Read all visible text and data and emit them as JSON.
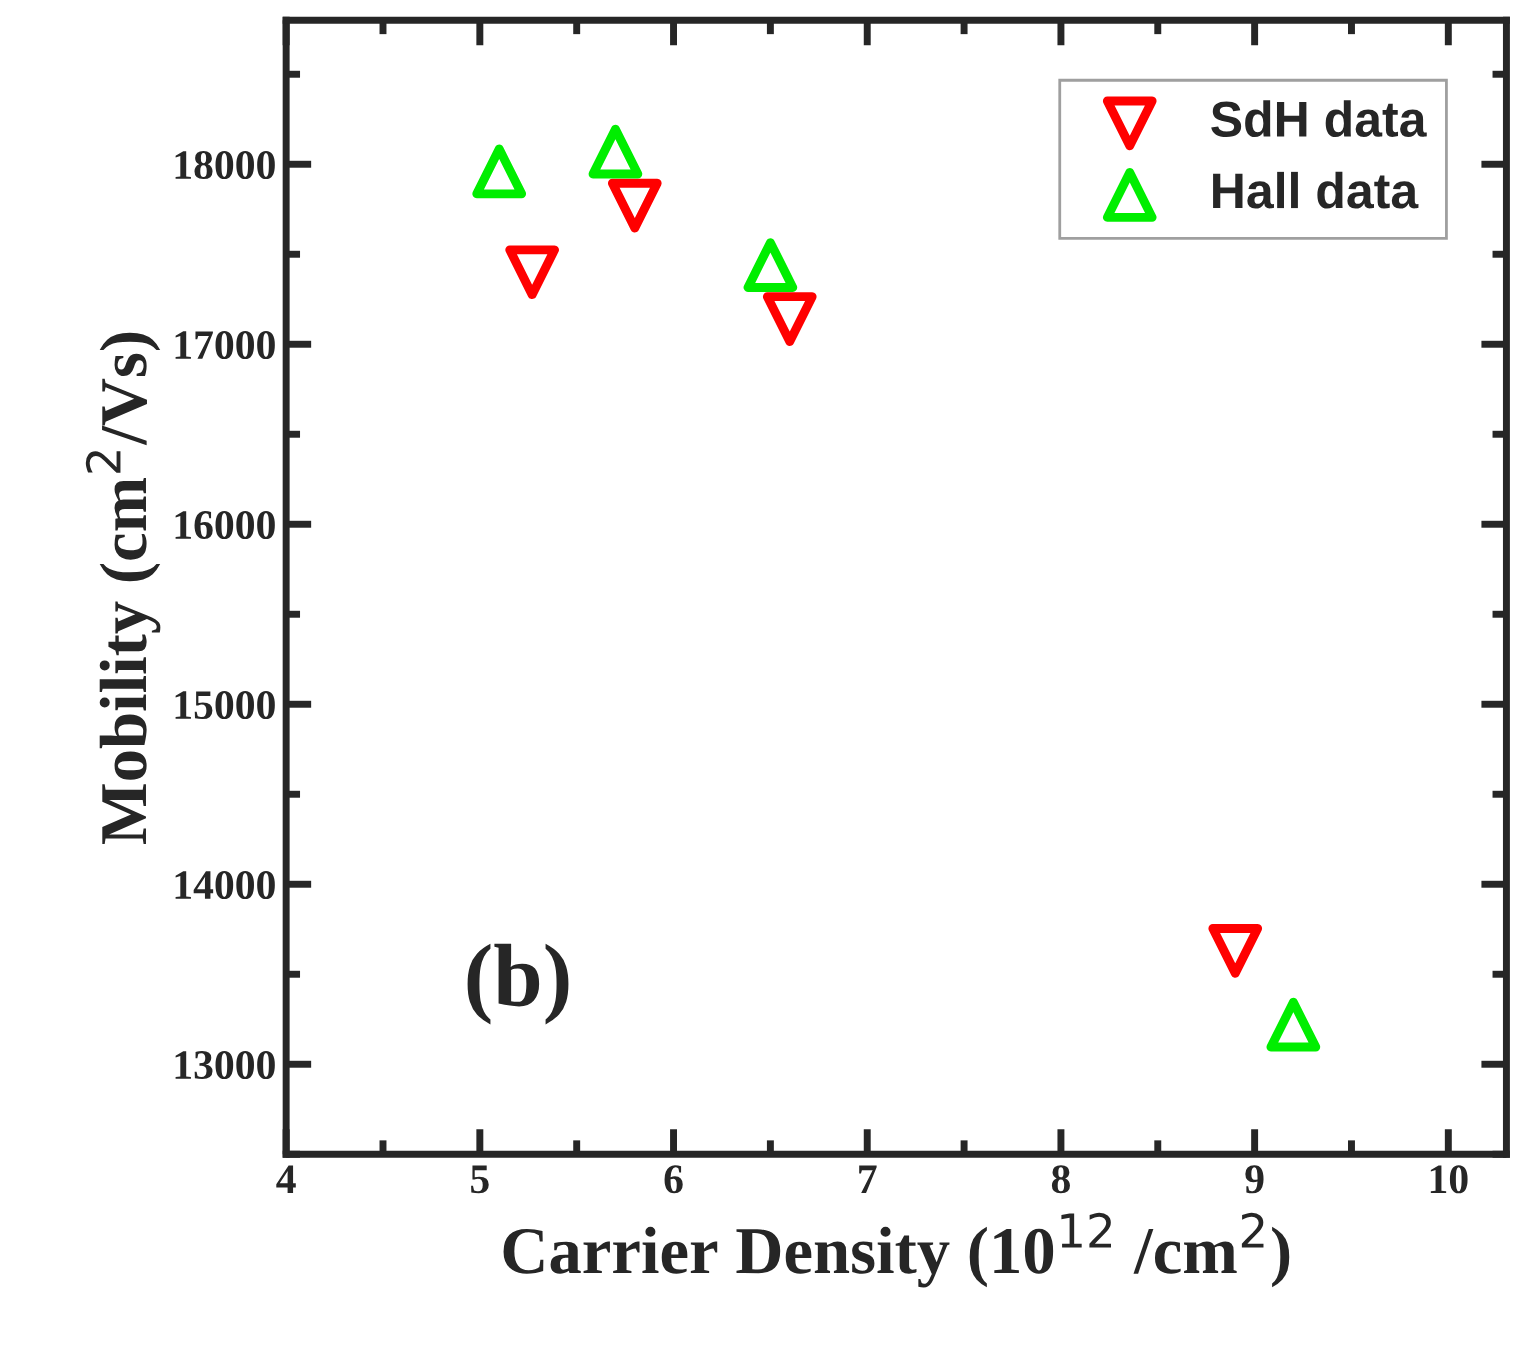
{
  "chart_data": {
    "type": "scatter",
    "xlabel": "Carrier Density (10$^{12}$ /cm$^{2}$)",
    "ylabel": "Mobility (cm$^{2}$/Vs)",
    "xlim": [
      4,
      10.3
    ],
    "xticks": [
      4,
      5,
      6,
      7,
      8,
      9,
      10
    ],
    "ylim": [
      12500,
      18800
    ],
    "yticks": [
      13000,
      14000,
      15000,
      16000,
      17000,
      18000
    ],
    "series": [
      {
        "name": "SdH data",
        "color": "#ff0000",
        "marker": "triangle_down",
        "x": [
          5.27,
          5.8,
          6.6,
          8.9
        ],
        "values": [
          17400,
          17770,
          17140,
          13630
        ]
      },
      {
        "name": "Hall data",
        "color": "#00ee00",
        "marker": "triangle",
        "x": [
          5.1,
          5.7,
          6.5,
          9.2
        ],
        "values": [
          17960,
          18070,
          17440,
          13220
        ]
      }
    ],
    "annotations": [
      "(b)"
    ],
    "legend": "top right",
    "grid": false
  }
}
